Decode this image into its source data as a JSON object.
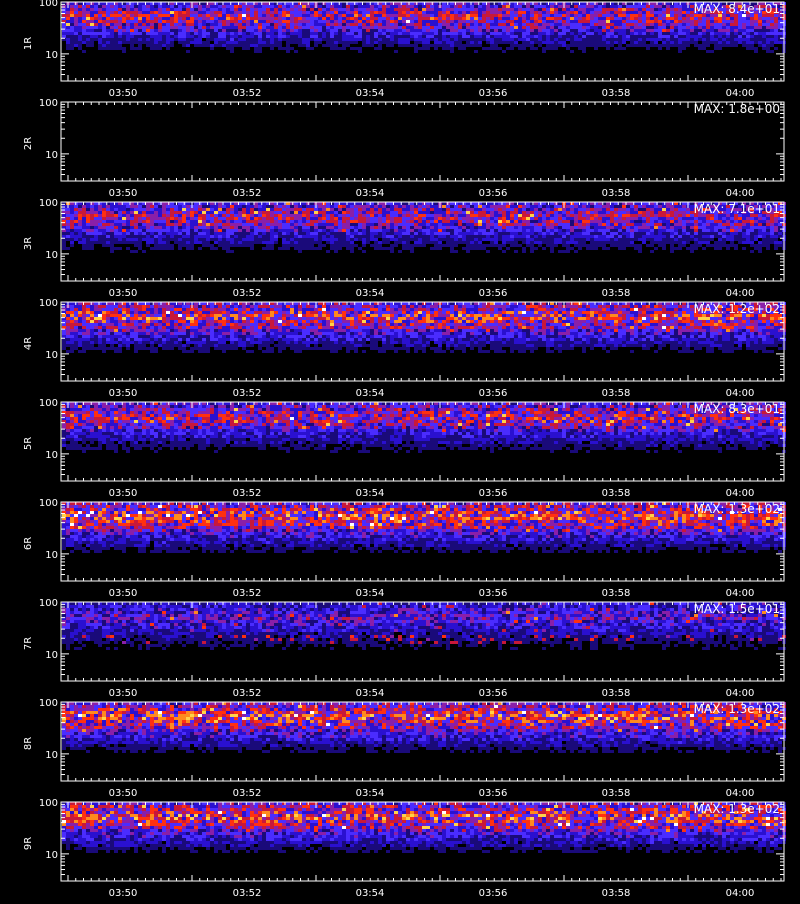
{
  "figure": {
    "x_ticks": [
      "03:50",
      "03:52",
      "03:54",
      "03:56",
      "03:58",
      "04:00"
    ],
    "y_ticks": [
      "100",
      "10"
    ],
    "xlabel": ""
  },
  "chart_data": [
    {
      "type": "heatmap",
      "ylabel": "1R",
      "annotation": "MAX: 8.4e+01",
      "max": 84,
      "x_ticks": [
        "03:50",
        "03:52",
        "03:54",
        "03:56",
        "03:58",
        "04:00"
      ],
      "y_ticks": [
        "100",
        "10"
      ],
      "ylim": [
        3,
        100
      ],
      "y_scale": "log",
      "xlim": [
        "03:48:45",
        "04:00:45"
      ],
      "intensity_band": [
        22,
        100
      ]
    },
    {
      "type": "heatmap",
      "ylabel": "2R",
      "annotation": "MAX: 1.8e+00",
      "max": 1.8,
      "x_ticks": [
        "03:50",
        "03:52",
        "03:54",
        "03:56",
        "03:58",
        "04:00"
      ],
      "y_ticks": [
        "100",
        "10"
      ],
      "ylim": [
        3,
        100
      ],
      "y_scale": "log",
      "xlim": [
        "03:48:45",
        "04:00:45"
      ],
      "intensity_band": null
    },
    {
      "type": "heatmap",
      "ylabel": "3R",
      "annotation": "MAX: 7.1e+01",
      "max": 71,
      "x_ticks": [
        "03:50",
        "03:52",
        "03:54",
        "03:56",
        "03:58",
        "04:00"
      ],
      "y_ticks": [
        "100",
        "10"
      ],
      "ylim": [
        3,
        100
      ],
      "y_scale": "log",
      "xlim": [
        "03:48:45",
        "04:00:45"
      ],
      "intensity_band": [
        25,
        90
      ]
    },
    {
      "type": "heatmap",
      "ylabel": "4R",
      "annotation": "MAX: 1.2e+02",
      "max": 120,
      "x_ticks": [
        "03:50",
        "03:52",
        "03:54",
        "03:56",
        "03:58",
        "04:00"
      ],
      "y_ticks": [
        "100",
        "10"
      ],
      "ylim": [
        3,
        100
      ],
      "y_scale": "log",
      "xlim": [
        "03:48:45",
        "04:00:45"
      ],
      "intensity_band": [
        25,
        90
      ]
    },
    {
      "type": "heatmap",
      "ylabel": "5R",
      "annotation": "MAX: 8.3e+01",
      "max": 83,
      "x_ticks": [
        "03:50",
        "03:52",
        "03:54",
        "03:56",
        "03:58",
        "04:00"
      ],
      "y_ticks": [
        "100",
        "10"
      ],
      "ylim": [
        3,
        100
      ],
      "y_scale": "log",
      "xlim": [
        "03:48:45",
        "04:00:45"
      ],
      "intensity_band": [
        25,
        90
      ]
    },
    {
      "type": "heatmap",
      "ylabel": "6R",
      "annotation": "MAX: 1.3e+02",
      "max": 130,
      "x_ticks": [
        "03:50",
        "03:52",
        "03:54",
        "03:56",
        "03:58",
        "04:00"
      ],
      "y_ticks": [
        "100",
        "10"
      ],
      "ylim": [
        3,
        100
      ],
      "y_scale": "log",
      "xlim": [
        "03:48:45",
        "04:00:45"
      ],
      "intensity_band": [
        25,
        90
      ]
    },
    {
      "type": "heatmap",
      "ylabel": "7R",
      "annotation": "MAX: 1.5e+01",
      "max": 15,
      "x_ticks": [
        "03:50",
        "03:52",
        "03:54",
        "03:56",
        "03:58",
        "04:00"
      ],
      "y_ticks": [
        "100",
        "10"
      ],
      "ylim": [
        3,
        100
      ],
      "y_scale": "log",
      "xlim": [
        "03:48:45",
        "04:00:45"
      ],
      "intensity_band": [
        8,
        60
      ]
    },
    {
      "type": "heatmap",
      "ylabel": "8R",
      "annotation": "MAX: 1.3e+02",
      "max": 130,
      "x_ticks": [
        "03:50",
        "03:52",
        "03:54",
        "03:56",
        "03:58",
        "04:00"
      ],
      "y_ticks": [
        "100",
        "10"
      ],
      "ylim": [
        3,
        100
      ],
      "y_scale": "log",
      "xlim": [
        "03:48:45",
        "04:00:45"
      ],
      "intensity_band": [
        25,
        90
      ]
    },
    {
      "type": "heatmap",
      "ylabel": "9R",
      "annotation": "MAX: 1.3e+02",
      "max": 130,
      "x_ticks": [
        "03:50",
        "03:52",
        "03:54",
        "03:56",
        "03:58",
        "04:00"
      ],
      "y_ticks": [
        "100",
        "10"
      ],
      "ylim": [
        3,
        100
      ],
      "y_scale": "log",
      "xlim": [
        "03:48:45",
        "04:00:45"
      ],
      "intensity_band": [
        25,
        90
      ]
    }
  ],
  "colors": {
    "background": "#000000",
    "axes": "#ffffff",
    "text": "#ffffff",
    "colormap": [
      "#000000",
      "#1a0a7a",
      "#2a10d0",
      "#4a2cff",
      "#8a1fa8",
      "#c8183a",
      "#ff3010",
      "#ff8a1e",
      "#ffd24a",
      "#ffffff"
    ]
  }
}
